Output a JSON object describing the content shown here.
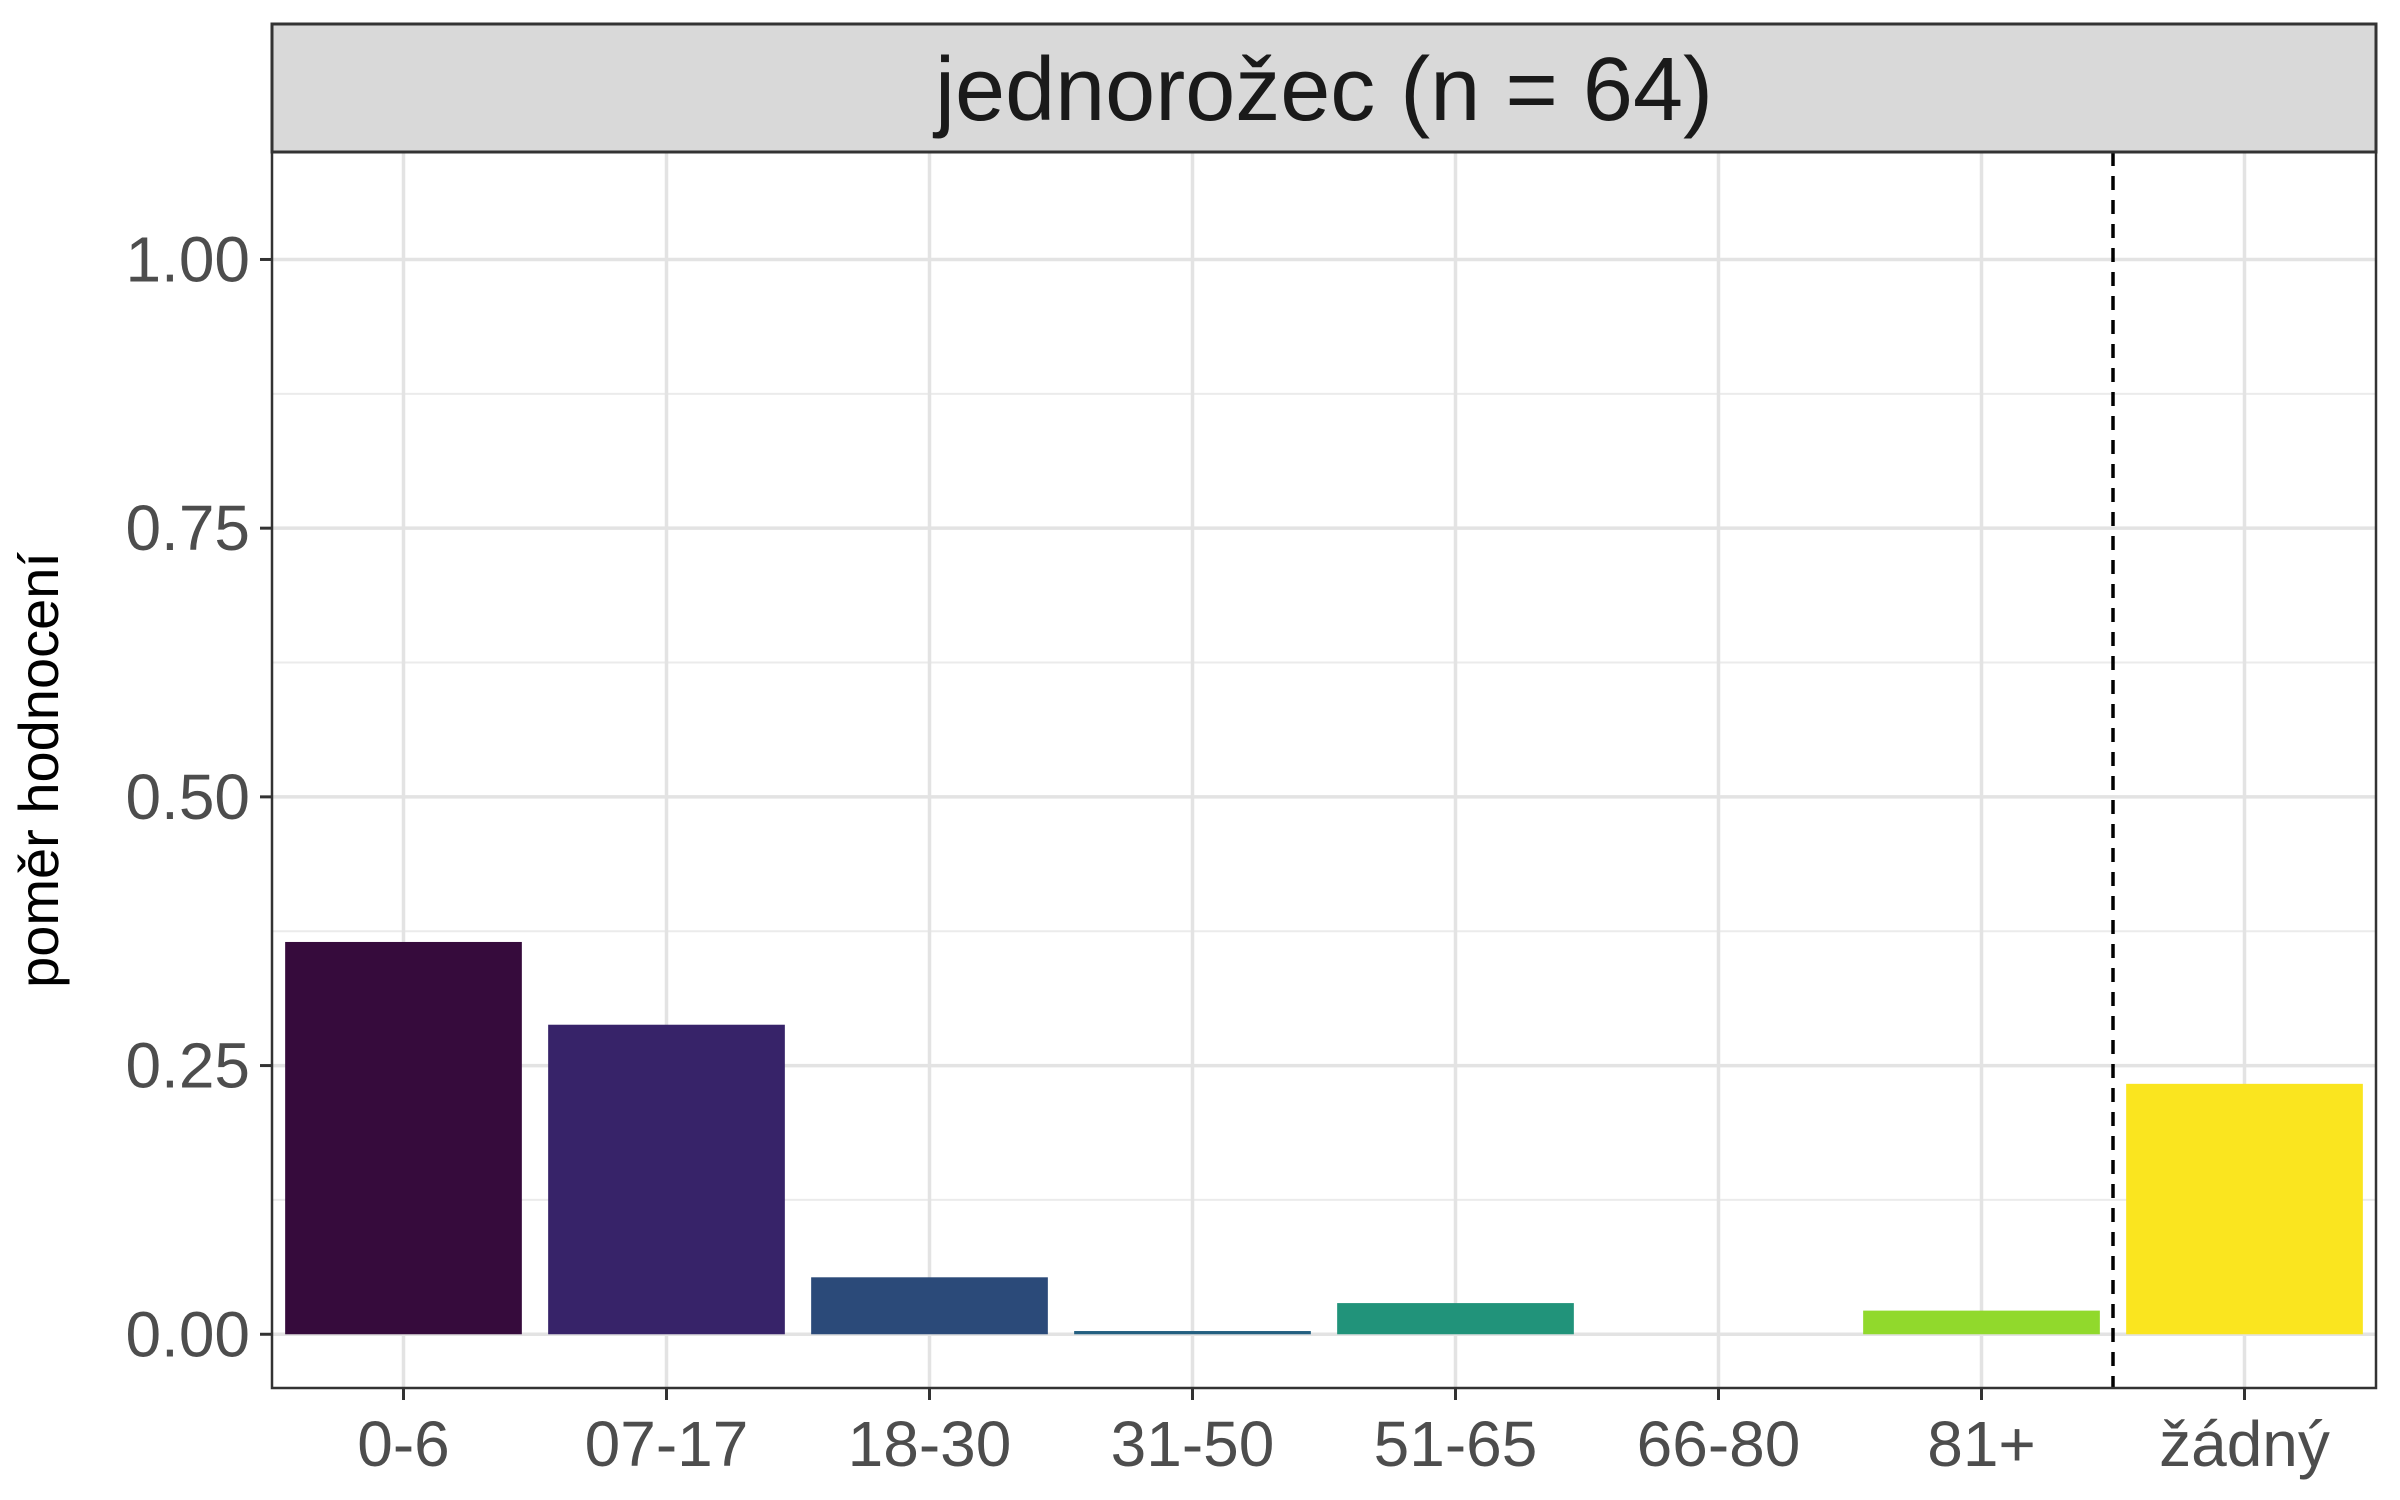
{
  "chart_data": {
    "type": "bar",
    "facet_title": "jednorožec (n = 64)",
    "ylabel": "poměr hodnocení",
    "xlabel": "",
    "categories": [
      "0-6",
      "07-17",
      "18-30",
      "31-50",
      "51-65",
      "66-80",
      "81+",
      "žádný"
    ],
    "values": [
      0.365,
      0.288,
      0.053,
      0.003,
      0.029,
      0.0,
      0.022,
      0.233
    ],
    "colors": [
      "#360b3c",
      "#372369",
      "#2b4a79",
      "#235f80",
      "#21937a",
      "#4cc26a",
      "#91d92c",
      "#fae51f"
    ],
    "ylim": [
      -0.05,
      1.1
    ],
    "yticks": [
      "0.00",
      "0.25",
      "0.50",
      "0.75",
      "1.00"
    ],
    "reference_line": {
      "position_after_category": "81+",
      "style": "dashed"
    },
    "grid": true,
    "legend": "none"
  }
}
